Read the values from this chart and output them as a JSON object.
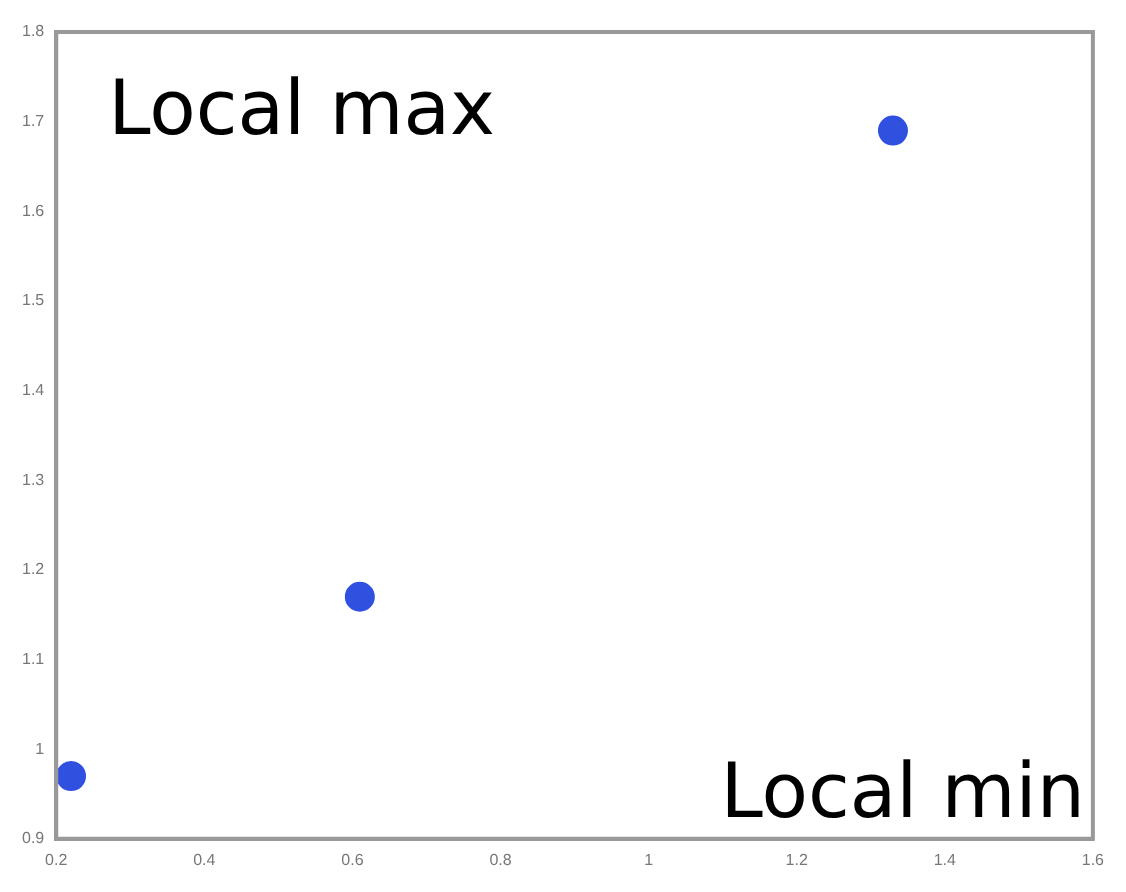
{
  "chart_data": {
    "type": "scatter",
    "x": [
      0.22,
      0.61,
      1.33
    ],
    "values": [
      0.97,
      1.17,
      1.69
    ],
    "color": "#3050e0",
    "marker": "circle",
    "xlim": [
      0.2,
      1.6
    ],
    "xticks": [
      0.2,
      0.4,
      0.6,
      0.8,
      1,
      1.2,
      1.4,
      1.6
    ],
    "ylim": [
      0.9,
      1.8
    ],
    "yticks": [
      0.9,
      1,
      1.1,
      1.2,
      1.3,
      1.4,
      1.5,
      1.6,
      1.7,
      1.8
    ],
    "grid": false,
    "legend": false,
    "annotations": [
      "Local max",
      "Local min"
    ]
  }
}
